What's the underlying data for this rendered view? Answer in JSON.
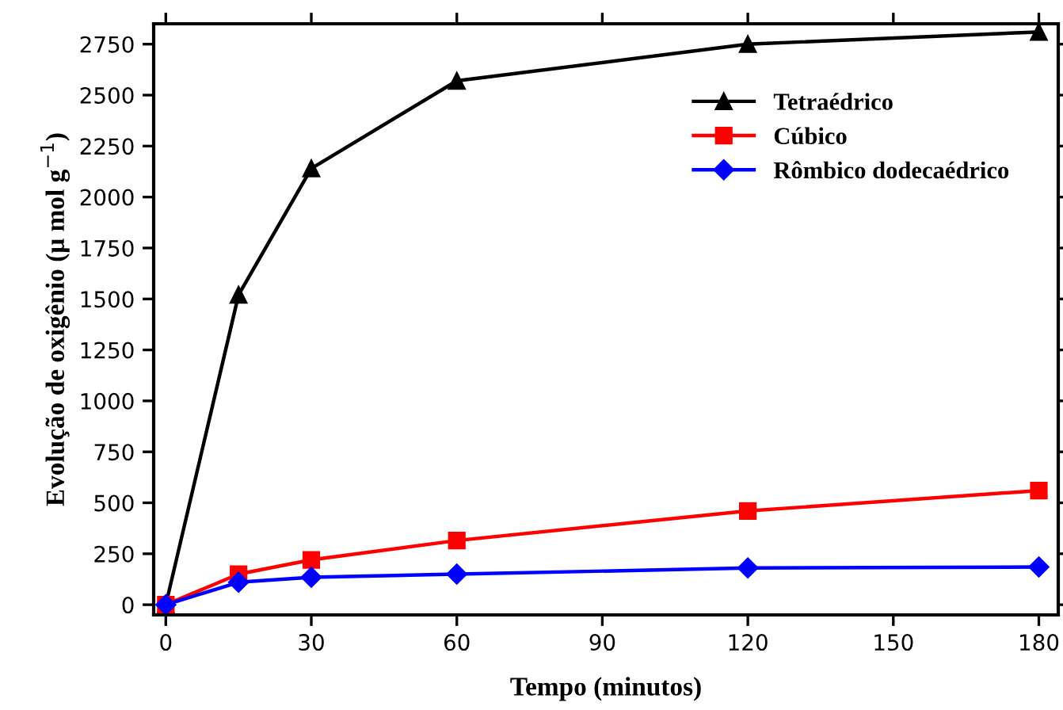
{
  "chart_data": {
    "type": "line",
    "xlabel": "Tempo (minutos)",
    "ylabel": "Evolução de oxigênio (μ mol g$^{−1}$)",
    "x": [
      0,
      15,
      30,
      60,
      120,
      180
    ],
    "series": [
      {
        "name": "Tetraédrico",
        "color": "#000000",
        "marker": "triangle",
        "values": [
          0,
          1520,
          2140,
          2570,
          2750,
          2810
        ]
      },
      {
        "name": "Cúbico",
        "color": "#ff0000",
        "marker": "square",
        "values": [
          0,
          150,
          220,
          315,
          460,
          560
        ]
      },
      {
        "name": "Rômbico dodecaédrico",
        "color": "#0000ff",
        "marker": "diamond",
        "values": [
          0,
          110,
          135,
          150,
          180,
          185
        ]
      }
    ],
    "xlim": [
      -2.5,
      184
    ],
    "ylim": [
      -50,
      2850
    ],
    "xticks": [
      0,
      30,
      60,
      90,
      120,
      150,
      180
    ],
    "yticks": [
      0,
      250,
      500,
      750,
      1000,
      1250,
      1500,
      1750,
      2000,
      2250,
      2500,
      2750
    ],
    "grid": false,
    "legend": "top right",
    "line_style": "solid"
  }
}
